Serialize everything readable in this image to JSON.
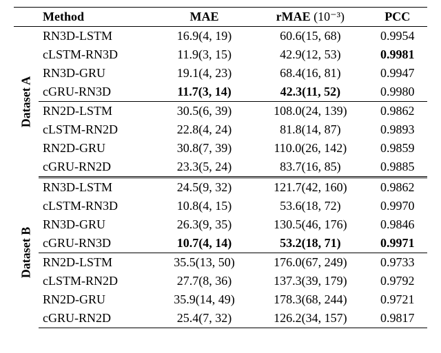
{
  "headers": {
    "method": "Method",
    "mae": "MAE",
    "rmae_prefix": "rMAE",
    "rmae_exp": "(10⁻³)",
    "pcc": "PCC"
  },
  "datasets": [
    {
      "label": "Dataset A",
      "groups": [
        [
          {
            "method": "RN3D-LSTM",
            "mae": "16.9(4, 19)",
            "rmae": "60.6(15, 68)",
            "pcc": "0.9954"
          },
          {
            "method": "cLSTM-RN3D",
            "mae": "11.9(3, 15)",
            "rmae": "42.9(12, 53)",
            "pcc": "0.9981",
            "bold_pcc": true
          },
          {
            "method": "RN3D-GRU",
            "mae": "19.1(4, 23)",
            "rmae": "68.4(16, 81)",
            "pcc": "0.9947"
          },
          {
            "method": "cGRU-RN3D",
            "mae": "11.7(3, 14)",
            "rmae": "42.3(11, 52)",
            "pcc": "0.9980",
            "bold_mae": true,
            "bold_rmae": true
          }
        ],
        [
          {
            "method": "RN2D-LSTM",
            "mae": "30.5(6, 39)",
            "rmae": "108.0(24, 139)",
            "pcc": "0.9862"
          },
          {
            "method": "cLSTM-RN2D",
            "mae": "22.8(4, 24)",
            "rmae": "81.8(14, 87)",
            "pcc": "0.9893"
          },
          {
            "method": "RN2D-GRU",
            "mae": "30.8(7, 39)",
            "rmae": "110.0(26, 142)",
            "pcc": "0.9859"
          },
          {
            "method": "cGRU-RN2D",
            "mae": "23.3(5, 24)",
            "rmae": "83.7(16, 85)",
            "pcc": "0.9885"
          }
        ]
      ]
    },
    {
      "label": "Dataset B",
      "groups": [
        [
          {
            "method": "RN3D-LSTM",
            "mae": "24.5(9, 32)",
            "rmae": "121.7(42, 160)",
            "pcc": "0.9862"
          },
          {
            "method": "cLSTM-RN3D",
            "mae": "10.8(4, 15)",
            "rmae": "53.6(18, 72)",
            "pcc": "0.9970"
          },
          {
            "method": "RN3D-GRU",
            "mae": "26.3(9, 35)",
            "rmae": "130.5(46, 176)",
            "pcc": "0.9846"
          },
          {
            "method": "cGRU-RN3D",
            "mae": "10.7(4, 14)",
            "rmae": "53.2(18, 71)",
            "pcc": "0.9971",
            "bold_mae": true,
            "bold_rmae": true,
            "bold_pcc": true
          }
        ],
        [
          {
            "method": "RN2D-LSTM",
            "mae": "35.5(13, 50)",
            "rmae": "176.0(67, 249)",
            "pcc": "0.9733"
          },
          {
            "method": "cLSTM-RN2D",
            "mae": "27.7(8, 36)",
            "rmae": "137.3(39, 179)",
            "pcc": "0.9792"
          },
          {
            "method": "RN2D-GRU",
            "mae": "35.9(14, 49)",
            "rmae": "178.3(68, 244)",
            "pcc": "0.9721"
          },
          {
            "method": "cGRU-RN2D",
            "mae": "25.4(7, 32)",
            "rmae": "126.2(34, 157)",
            "pcc": "0.9817"
          }
        ]
      ]
    }
  ],
  "style": {
    "font_family": "Times New Roman",
    "font_size_pt": 13,
    "background_color": "#ffffff",
    "text_color": "#000000",
    "rule_color": "#000000"
  }
}
